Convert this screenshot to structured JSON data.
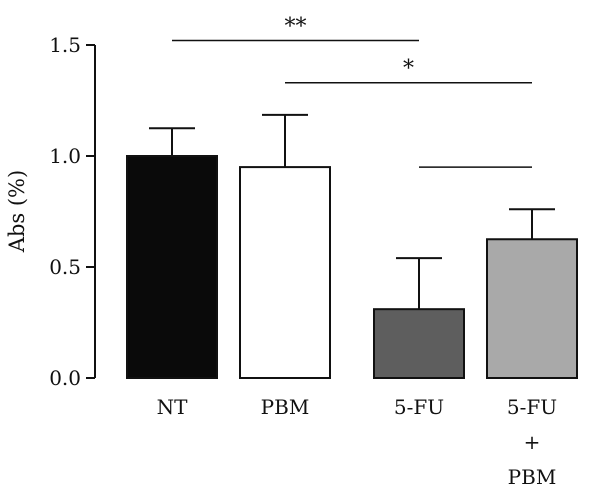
{
  "chart_data": {
    "type": "bar",
    "ylabel": "Abs (%)",
    "ylim": [
      0,
      1.5
    ],
    "yticks": [
      "0.0",
      "0.5",
      "1.0",
      "1.5"
    ],
    "categories": [
      [
        "NT"
      ],
      [
        "PBM"
      ],
      [
        "5-FU"
      ],
      [
        "5-FU",
        "+",
        "PBM"
      ]
    ],
    "values": [
      1.0,
      0.95,
      0.31,
      0.625
    ],
    "errors": [
      0.125,
      0.235,
      0.23,
      0.135
    ],
    "bar_colors": [
      "#0a0a0a",
      "#ffffff",
      "#5e5e5e",
      "#a9a9a9"
    ],
    "significance": [
      {
        "from": 0,
        "to": 2,
        "y": 1.52,
        "label": "**"
      },
      {
        "from": 1,
        "to": 3,
        "y": 1.33,
        "label": "*"
      },
      {
        "from": 2,
        "to": 3,
        "y": 0.95,
        "label": ""
      }
    ]
  }
}
